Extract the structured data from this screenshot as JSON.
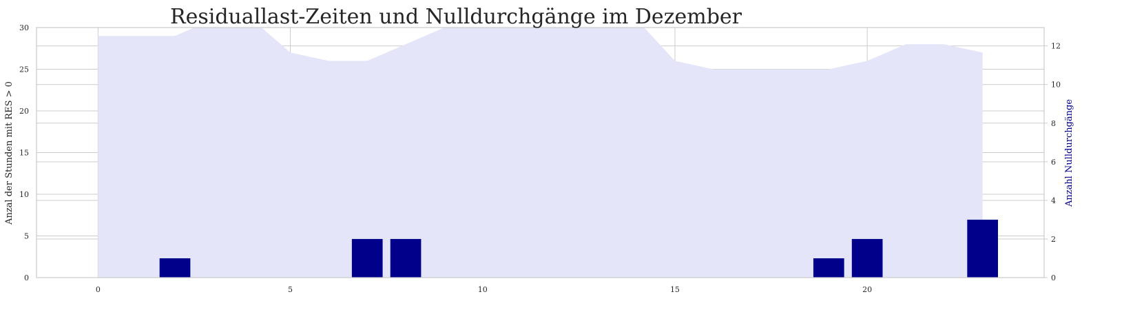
{
  "chart_data": {
    "type": "bar",
    "title": "Residuallast-Zeiten und Nulldurchgänge im Dezember",
    "xlabel": "",
    "ylabel": "Anzal der Stunden mit RES > 0",
    "ylabel_right": "Anzahl Nulldurchgänge",
    "xlim": [
      -1.6,
      24.6
    ],
    "ylim": [
      0,
      30
    ],
    "ylim_right": [
      0,
      12.95
    ],
    "x_ticks": [
      0,
      5,
      10,
      15,
      20
    ],
    "y_ticks": [
      0,
      5,
      10,
      15,
      20,
      25,
      30
    ],
    "y_ticks_right": [
      0,
      2,
      4,
      6,
      8,
      10,
      12
    ],
    "grid": true,
    "series": [
      {
        "kind": "area",
        "axis": "left",
        "x": [
          0,
          1,
          2,
          3,
          4,
          5,
          6,
          7,
          8,
          9,
          10,
          11,
          12,
          13,
          14,
          15,
          16,
          17,
          18,
          19,
          20,
          21,
          22,
          23
        ],
        "values": [
          29,
          29,
          29,
          31,
          31,
          27,
          26,
          26,
          28,
          30,
          31,
          31,
          31,
          31,
          31,
          26,
          25,
          25,
          25,
          25,
          26,
          28,
          28,
          27
        ],
        "color": "#E4E5F8"
      },
      {
        "kind": "bar",
        "axis": "right",
        "x": [
          2,
          7,
          8,
          19,
          20,
          23
        ],
        "values": [
          1,
          2,
          2,
          1,
          2,
          3
        ],
        "color": "#00008B"
      }
    ],
    "colors": {
      "right_axis_label": "#00008B",
      "grid": "#cccccc",
      "spine": "#cccccc",
      "text": "#262626"
    }
  }
}
